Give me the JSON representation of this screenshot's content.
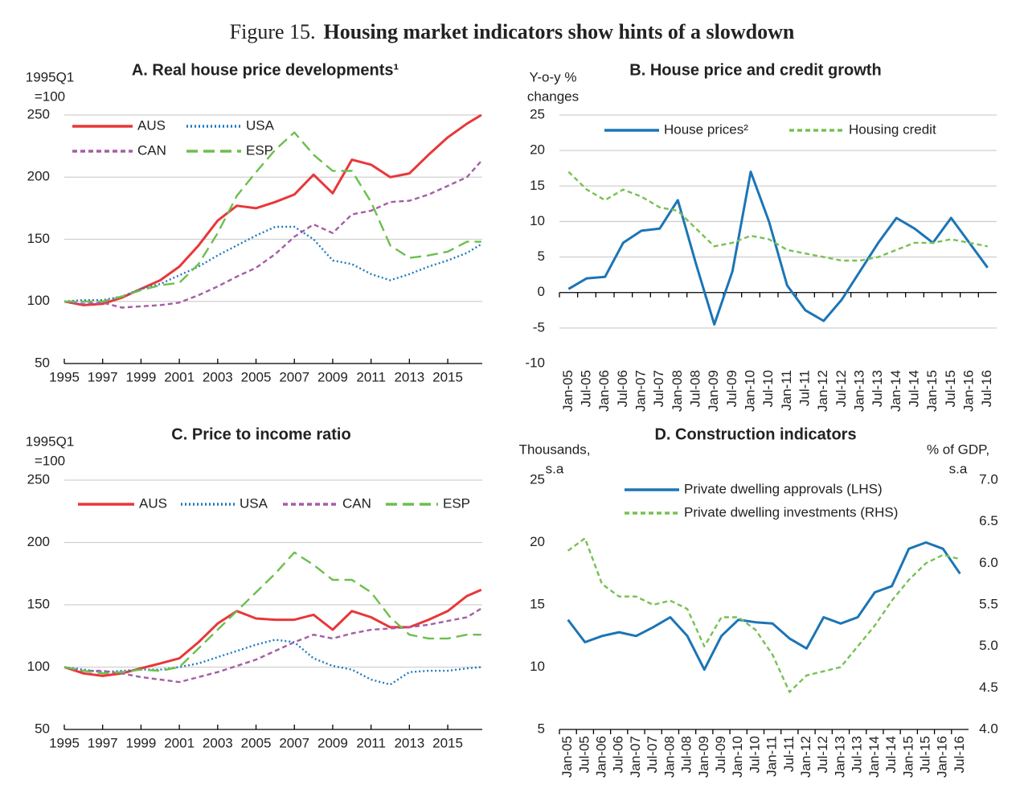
{
  "figure": {
    "label": "Figure 15.",
    "title": "Housing market indicators show hints of a slowdown"
  },
  "chart_data": [
    {
      "type": "line",
      "title": "A. Real house price developments¹",
      "y_axis_label": [
        "1995Q1",
        "=100"
      ],
      "x": [
        1995,
        1996,
        1997,
        1998,
        1999,
        2000,
        2001,
        2002,
        2003,
        2004,
        2005,
        2006,
        2007,
        2008,
        2009,
        2010,
        2011,
        2012,
        2013,
        2014,
        2015,
        2016,
        2016.75
      ],
      "xlim": [
        1995,
        2016.8
      ],
      "xticks": [
        1995,
        1997,
        1999,
        2001,
        2003,
        2005,
        2007,
        2009,
        2011,
        2013,
        2015
      ],
      "ylim": [
        50,
        250
      ],
      "yticks": [
        50,
        100,
        150,
        200,
        250
      ],
      "grid": true,
      "series": [
        {
          "name": "AUS",
          "color": "#e8373a",
          "style": "solid",
          "values": [
            100,
            97,
            98,
            103,
            110,
            117,
            128,
            145,
            165,
            177,
            175,
            180,
            186,
            202,
            187,
            214,
            210,
            200,
            203,
            218,
            232,
            243,
            250
          ]
        },
        {
          "name": "USA",
          "color": "#1f7bbf",
          "style": "dotted",
          "values": [
            100,
            101,
            101,
            104,
            110,
            114,
            121,
            128,
            137,
            145,
            153,
            160,
            160,
            150,
            133,
            130,
            122,
            117,
            122,
            128,
            133,
            139,
            146
          ]
        },
        {
          "name": "CAN",
          "color": "#a45ea6",
          "style": "dashed",
          "values": [
            100,
            98,
            99,
            95,
            96,
            97,
            99,
            105,
            112,
            120,
            127,
            138,
            152,
            162,
            155,
            170,
            173,
            180,
            181,
            186,
            193,
            200,
            213
          ]
        },
        {
          "name": "ESP",
          "color": "#6bbf4e",
          "style": "longdash",
          "values": [
            100,
            100,
            100,
            104,
            109,
            113,
            115,
            130,
            155,
            185,
            204,
            222,
            236,
            218,
            205,
            205,
            180,
            145,
            135,
            137,
            140,
            148,
            148
          ]
        }
      ]
    },
    {
      "type": "line",
      "title": "B. House price and credit growth",
      "y_axis_label": [
        "Y-o-y %",
        "changes"
      ],
      "categories": [
        "Jan-05",
        "Jul-05",
        "Jan-06",
        "Jul-06",
        "Jan-07",
        "Jul-07",
        "Jan-08",
        "Jul-08",
        "Jan-09",
        "Jul-09",
        "Jan-10",
        "Jul-10",
        "Jan-11",
        "Jul-11",
        "Jan-12",
        "Jul-12",
        "Jan-13",
        "Jul-13",
        "Jan-14",
        "Jul-14",
        "Jan-15",
        "Jul-15",
        "Jan-16",
        "Jul-16"
      ],
      "ylim": [
        -10,
        25
      ],
      "yticks": [
        -10,
        -5,
        0,
        5,
        10,
        15,
        20,
        25
      ],
      "grid": true,
      "series": [
        {
          "name": "House prices²",
          "color": "#1b75b6",
          "style": "solid",
          "values": [
            0.5,
            2,
            2.2,
            7,
            8.7,
            9,
            13,
            4,
            -4.5,
            3,
            17,
            10,
            1,
            -2.5,
            -4,
            -1,
            3,
            7,
            10.5,
            9,
            7,
            10.5,
            7,
            3.5
          ]
        },
        {
          "name": "Housing credit",
          "color": "#77c153",
          "style": "dashed",
          "values": [
            17,
            14.5,
            13,
            14.5,
            13.5,
            12,
            11.5,
            9,
            6.5,
            7,
            8,
            7.5,
            6,
            5.5,
            5,
            4.5,
            4.5,
            5,
            6,
            7,
            7,
            7.5,
            7,
            6.5
          ]
        }
      ]
    },
    {
      "type": "line",
      "title": "C. Price to income ratio",
      "y_axis_label": [
        "1995Q1",
        "=100"
      ],
      "x": [
        1995,
        1996,
        1997,
        1998,
        1999,
        2000,
        2001,
        2002,
        2003,
        2004,
        2005,
        2006,
        2007,
        2008,
        2009,
        2010,
        2011,
        2012,
        2013,
        2014,
        2015,
        2016,
        2016.75
      ],
      "xlim": [
        1995,
        2016.8
      ],
      "xticks": [
        1995,
        1997,
        1999,
        2001,
        2003,
        2005,
        2007,
        2009,
        2011,
        2013,
        2015
      ],
      "ylim": [
        50,
        250
      ],
      "yticks": [
        50,
        100,
        150,
        200,
        250
      ],
      "grid": true,
      "series": [
        {
          "name": "AUS",
          "color": "#e8373a",
          "style": "solid",
          "values": [
            100,
            95,
            93,
            95,
            99,
            103,
            107,
            120,
            135,
            145,
            139,
            138,
            138,
            142,
            130,
            145,
            140,
            132,
            132,
            138,
            145,
            157,
            162
          ]
        },
        {
          "name": "USA",
          "color": "#1f7bbf",
          "style": "dotted",
          "values": [
            100,
            98,
            96,
            97,
            98,
            98,
            100,
            103,
            108,
            113,
            118,
            122,
            120,
            107,
            101,
            98,
            90,
            86,
            96,
            97,
            97,
            99,
            100
          ]
        },
        {
          "name": "CAN",
          "color": "#a45ea6",
          "style": "dashed",
          "values": [
            100,
            97,
            97,
            95,
            92,
            90,
            88,
            92,
            96,
            101,
            106,
            113,
            120,
            126,
            123,
            127,
            130,
            131,
            132,
            134,
            137,
            140,
            147
          ]
        },
        {
          "name": "ESP",
          "color": "#6bbf4e",
          "style": "longdash",
          "values": [
            100,
            97,
            95,
            96,
            98,
            97,
            100,
            115,
            130,
            145,
            160,
            175,
            192,
            182,
            170,
            170,
            160,
            140,
            126,
            123,
            123,
            126,
            126
          ]
        }
      ]
    },
    {
      "type": "line",
      "title": "D. Construction indicators",
      "y_axis_label": [
        "Thousands,",
        "s.a"
      ],
      "y2_axis_label": [
        "% of GDP,",
        "s.a"
      ],
      "categories": [
        "Jan-05",
        "Jul-05",
        "Jan-06",
        "Jul-06",
        "Jan-07",
        "Jul-07",
        "Jan-08",
        "Jul-08",
        "Jan-09",
        "Jul-09",
        "Jan-10",
        "Jul-10",
        "Jan-11",
        "Jul-11",
        "Jan-12",
        "Jul-12",
        "Jan-13",
        "Jul-13",
        "Jan-14",
        "Jul-14",
        "Jan-15",
        "Jul-15",
        "Jan-16",
        "Jul-16"
      ],
      "ylim": [
        5,
        25
      ],
      "yticks": [
        5,
        10,
        15,
        20,
        25
      ],
      "y2lim": [
        4,
        7
      ],
      "y2ticks": [
        {
          "value": 4,
          "label": "4.0"
        },
        4.5,
        {
          "value": 5,
          "label": "5.0"
        },
        5.5,
        {
          "value": 6,
          "label": "6.0"
        },
        6.5,
        {
          "value": 7,
          "label": "7.0"
        }
      ],
      "grid": false,
      "series": [
        {
          "name": "Private dwelling approvals (LHS)",
          "color": "#1b75b6",
          "style": "solid",
          "values": [
            13.8,
            12,
            12.5,
            12.8,
            12.5,
            13.2,
            14,
            12.5,
            9.8,
            12.5,
            13.8,
            13.6,
            13.5,
            12.3,
            11.5,
            14,
            13.5,
            14,
            16,
            16.5,
            19.5,
            20,
            19.5,
            17.5
          ]
        },
        {
          "name": "Private dwelling investments (RHS)",
          "color": "#77c153",
          "style": "dashed",
          "axis": "y2",
          "values": [
            6.15,
            6.3,
            5.75,
            5.6,
            5.6,
            5.5,
            5.55,
            5.45,
            5.0,
            5.35,
            5.35,
            5.2,
            4.9,
            4.45,
            4.65,
            4.7,
            4.75,
            5.0,
            5.25,
            5.55,
            5.8,
            6.0,
            6.1,
            6.05
          ]
        }
      ]
    }
  ]
}
